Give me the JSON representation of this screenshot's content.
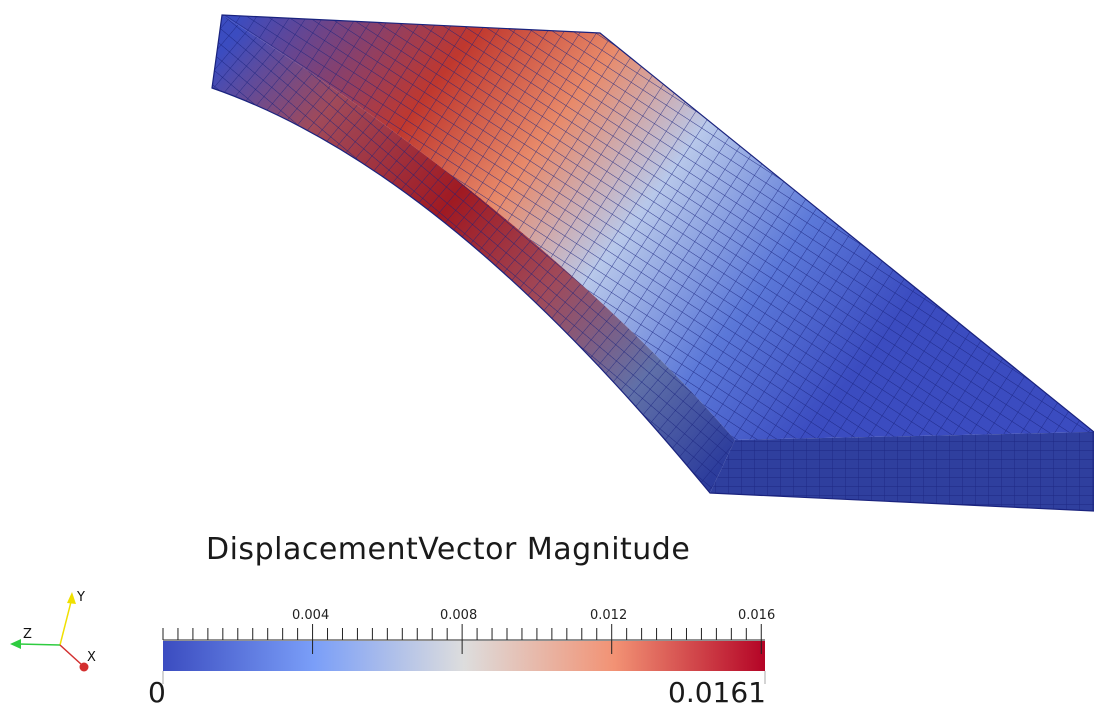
{
  "scene": {
    "colormap": {
      "low": "#3b4cc0",
      "mid": "#dddddd",
      "high": "#b40426",
      "mesh_line": "#1a237e"
    }
  },
  "legend": {
    "title": "DisplacementVector Magnitude",
    "ticks": [
      "0.004",
      "0.008",
      "0.012",
      "0.016"
    ],
    "range_min": "0",
    "range_max": "0.0161"
  },
  "orientation_axes": {
    "x_label": "X",
    "y_label": "Y",
    "z_label": "Z",
    "x_color": "#d32f2f",
    "y_color": "#f0e000",
    "z_color": "#2ecc40"
  }
}
